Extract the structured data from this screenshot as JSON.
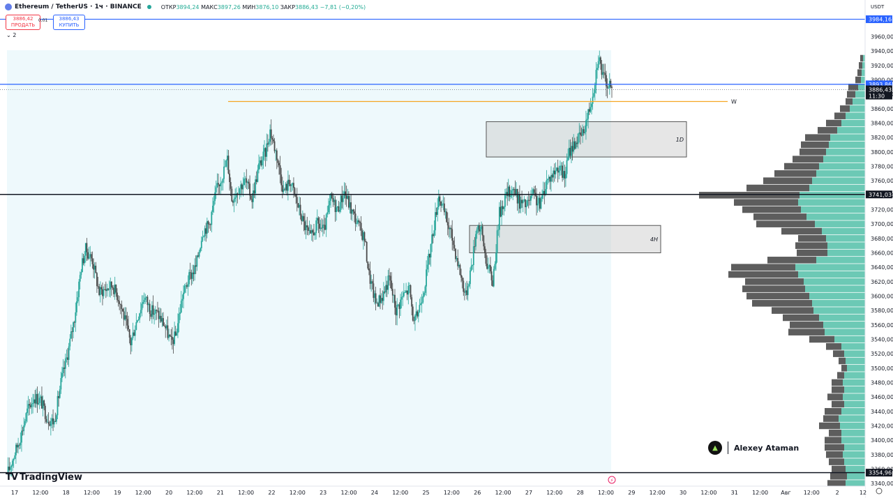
{
  "header": {
    "symbol": "Ethereum / TetherUS · 1ч · BINANCE",
    "ohlc_label_o": "ОТКР",
    "open": "3894,24",
    "ohlc_label_h": "МАКС",
    "high": "3897,26",
    "ohlc_label_l": "МИН",
    "low": "3876,10",
    "ohlc_label_c": "ЗАКР",
    "close": "3886,43",
    "change": "−7,81 (−0,20%)"
  },
  "trade": {
    "sell_price": "3886,42",
    "sell_label": "ПРОДАТЬ",
    "spread": "0,01",
    "buy_price": "3886,43",
    "buy_label": "КУПИТЬ"
  },
  "indicators_count": "2",
  "currency": "USDT",
  "branding": {
    "tradingview": "TradingView",
    "author": "Alexey Ataman"
  },
  "colors": {
    "up": "#26a69a",
    "down": "#4a4a4a",
    "blue_line": "#2962ff",
    "orange_line": "#f5a623",
    "profile_up": "#6cc9b5",
    "profile_down": "#5d5d5d",
    "bg_highlight": "#e8f6fb"
  },
  "chart_data": {
    "type": "candlestick",
    "symbol": "Ethereum / TetherUS",
    "timeframe": "1ч",
    "exchange": "BINANCE",
    "y_axis": {
      "range": [
        3335,
        3970
      ],
      "tick_labels": [
        "3960,00",
        "3940,00",
        "3920,00",
        "3900,00",
        "3880,00",
        "3860,00",
        "3840,00",
        "3820,00",
        "3800,00",
        "3780,00",
        "3760,00",
        "3740,00",
        "3720,00",
        "3700,00",
        "3680,00",
        "3660,00",
        "3640,00",
        "3620,00",
        "3600,00",
        "3580,00",
        "3560,00",
        "3540,00",
        "3520,00",
        "3500,00",
        "3480,00",
        "3460,00",
        "3440,00",
        "3420,00",
        "3400,00",
        "3380,00",
        "3360,00",
        "3340,00"
      ]
    },
    "x_axis": {
      "tick_labels": [
        "17",
        "12:00",
        "18",
        "12:00",
        "19",
        "12:00",
        "20",
        "12:00",
        "21",
        "12:00",
        "22",
        "12:00",
        "23",
        "12:00",
        "24",
        "12:00",
        "25",
        "12:00",
        "26",
        "12:00",
        "27",
        "12:00",
        "28",
        "12:00",
        "29",
        "12:00",
        "30",
        "12:00",
        "31",
        "12:00",
        "Авг",
        "12:00",
        "2",
        "12"
      ]
    },
    "close_path": [
      [
        0,
        3352
      ],
      [
        6,
        3378
      ],
      [
        12,
        3405
      ],
      [
        18,
        3440
      ],
      [
        24,
        3460
      ],
      [
        30,
        3455
      ],
      [
        36,
        3430
      ],
      [
        42,
        3425
      ],
      [
        48,
        3480
      ],
      [
        54,
        3520
      ],
      [
        60,
        3570
      ],
      [
        66,
        3640
      ],
      [
        70,
        3665
      ],
      [
        76,
        3650
      ],
      [
        82,
        3605
      ],
      [
        88,
        3610
      ],
      [
        94,
        3615
      ],
      [
        100,
        3595
      ],
      [
        106,
        3560
      ],
      [
        110,
        3535
      ],
      [
        116,
        3570
      ],
      [
        122,
        3600
      ],
      [
        128,
        3580
      ],
      [
        134,
        3575
      ],
      [
        140,
        3560
      ],
      [
        146,
        3535
      ],
      [
        150,
        3545
      ],
      [
        156,
        3600
      ],
      [
        162,
        3625
      ],
      [
        168,
        3640
      ],
      [
        174,
        3690
      ],
      [
        180,
        3700
      ],
      [
        186,
        3745
      ],
      [
        192,
        3770
      ],
      [
        196,
        3790
      ],
      [
        200,
        3735
      ],
      [
        206,
        3750
      ],
      [
        212,
        3760
      ],
      [
        218,
        3735
      ],
      [
        224,
        3780
      ],
      [
        230,
        3800
      ],
      [
        234,
        3830
      ],
      [
        240,
        3795
      ],
      [
        246,
        3745
      ],
      [
        252,
        3760
      ],
      [
        258,
        3730
      ],
      [
        264,
        3700
      ],
      [
        270,
        3680
      ],
      [
        276,
        3700
      ],
      [
        282,
        3690
      ],
      [
        288,
        3735
      ],
      [
        294,
        3720
      ],
      [
        300,
        3745
      ],
      [
        306,
        3720
      ],
      [
        312,
        3700
      ],
      [
        318,
        3680
      ],
      [
        322,
        3630
      ],
      [
        328,
        3590
      ],
      [
        334,
        3600
      ],
      [
        340,
        3625
      ],
      [
        346,
        3580
      ],
      [
        352,
        3600
      ],
      [
        358,
        3610
      ],
      [
        362,
        3560
      ],
      [
        366,
        3580
      ],
      [
        372,
        3620
      ],
      [
        378,
        3680
      ],
      [
        384,
        3740
      ],
      [
        390,
        3710
      ],
      [
        396,
        3680
      ],
      [
        402,
        3640
      ],
      [
        408,
        3600
      ],
      [
        414,
        3650
      ],
      [
        418,
        3700
      ],
      [
        422,
        3690
      ],
      [
        426,
        3650
      ],
      [
        432,
        3620
      ],
      [
        438,
        3715
      ],
      [
        444,
        3740
      ],
      [
        450,
        3750
      ],
      [
        456,
        3730
      ],
      [
        462,
        3725
      ],
      [
        468,
        3740
      ],
      [
        474,
        3725
      ],
      [
        480,
        3760
      ],
      [
        486,
        3770
      ],
      [
        490,
        3780
      ],
      [
        496,
        3765
      ],
      [
        500,
        3800
      ],
      [
        506,
        3815
      ],
      [
        512,
        3825
      ],
      [
        518,
        3860
      ],
      [
        522,
        3890
      ],
      [
        526,
        3935
      ],
      [
        530,
        3905
      ],
      [
        534,
        3895
      ],
      [
        538,
        3886
      ]
    ],
    "price_lines": [
      {
        "price": 3984.16,
        "style": "blue"
      },
      {
        "price": 3893.86,
        "style": "blue"
      },
      {
        "price": 3886.43,
        "style": "current"
      },
      {
        "price": 3741.03,
        "style": "black"
      },
      {
        "price": 3354.96,
        "style": "black"
      },
      {
        "price": 3870,
        "style": "orange",
        "label": "W"
      }
    ],
    "price_labels": [
      "3984,16",
      "3893,86",
      "3886,43",
      "11:30",
      "3741,03",
      "3354,96"
    ],
    "zones": [
      {
        "label": "1D",
        "price_top": 3842,
        "price_bottom": 3793
      },
      {
        "label": "4H",
        "price_top": 3698,
        "price_bottom": 3660
      }
    ],
    "volume_profile": {
      "step": 10,
      "levels": [
        {
          "price": 3930,
          "up": 3,
          "down": 4
        },
        {
          "price": 3920,
          "up": 4,
          "down": 5
        },
        {
          "price": 3910,
          "up": 5,
          "down": 6
        },
        {
          "price": 3900,
          "up": 6,
          "down": 8
        },
        {
          "price": 3890,
          "up": 10,
          "down": 14
        },
        {
          "price": 3880,
          "up": 14,
          "down": 12
        },
        {
          "price": 3870,
          "up": 18,
          "down": 10
        },
        {
          "price": 3860,
          "up": 22,
          "down": 14
        },
        {
          "price": 3850,
          "up": 28,
          "down": 16
        },
        {
          "price": 3840,
          "up": 34,
          "down": 22
        },
        {
          "price": 3830,
          "up": 40,
          "down": 28
        },
        {
          "price": 3820,
          "up": 50,
          "down": 36
        },
        {
          "price": 3810,
          "up": 52,
          "down": 40
        },
        {
          "price": 3800,
          "up": 56,
          "down": 38
        },
        {
          "price": 3790,
          "up": 60,
          "down": 44
        },
        {
          "price": 3780,
          "up": 66,
          "down": 50
        },
        {
          "price": 3770,
          "up": 70,
          "down": 60
        },
        {
          "price": 3760,
          "up": 76,
          "down": 70
        },
        {
          "price": 3750,
          "up": 80,
          "down": 90
        },
        {
          "price": 3740,
          "up": 94,
          "down": 144
        },
        {
          "price": 3730,
          "up": 96,
          "down": 92
        },
        {
          "price": 3720,
          "up": 92,
          "down": 84
        },
        {
          "price": 3710,
          "up": 84,
          "down": 76
        },
        {
          "price": 3700,
          "up": 72,
          "down": 84
        },
        {
          "price": 3690,
          "up": 62,
          "down": 58
        },
        {
          "price": 3680,
          "up": 56,
          "down": 40
        },
        {
          "price": 3670,
          "up": 54,
          "down": 46
        },
        {
          "price": 3660,
          "up": 54,
          "down": 44
        },
        {
          "price": 3650,
          "up": 70,
          "down": 70
        },
        {
          "price": 3640,
          "up": 100,
          "down": 92
        },
        {
          "price": 3630,
          "up": 96,
          "down": 100
        },
        {
          "price": 3620,
          "up": 88,
          "down": 84
        },
        {
          "price": 3610,
          "up": 86,
          "down": 90
        },
        {
          "price": 3600,
          "up": 80,
          "down": 90
        },
        {
          "price": 3590,
          "up": 76,
          "down": 86
        },
        {
          "price": 3580,
          "up": 74,
          "down": 60
        },
        {
          "price": 3570,
          "up": 66,
          "down": 52
        },
        {
          "price": 3560,
          "up": 60,
          "down": 48
        },
        {
          "price": 3550,
          "up": 58,
          "down": 52
        },
        {
          "price": 3540,
          "up": 44,
          "down": 36
        },
        {
          "price": 3530,
          "up": 34,
          "down": 22
        },
        {
          "price": 3520,
          "up": 30,
          "down": 16
        },
        {
          "price": 3510,
          "up": 28,
          "down": 10
        },
        {
          "price": 3500,
          "up": 26,
          "down": 8
        },
        {
          "price": 3490,
          "up": 30,
          "down": 10
        },
        {
          "price": 3480,
          "up": 32,
          "down": 16
        },
        {
          "price": 3470,
          "up": 30,
          "down": 18
        },
        {
          "price": 3460,
          "up": 32,
          "down": 22
        },
        {
          "price": 3450,
          "up": 30,
          "down": 18
        },
        {
          "price": 3440,
          "up": 34,
          "down": 24
        },
        {
          "price": 3430,
          "up": 38,
          "down": 22
        },
        {
          "price": 3420,
          "up": 36,
          "down": 30
        },
        {
          "price": 3410,
          "up": 34,
          "down": 18
        },
        {
          "price": 3400,
          "up": 34,
          "down": 24
        },
        {
          "price": 3390,
          "up": 30,
          "down": 28
        },
        {
          "price": 3380,
          "up": 32,
          "down": 24
        },
        {
          "price": 3370,
          "up": 30,
          "down": 22
        },
        {
          "price": 3360,
          "up": 28,
          "down": 20
        },
        {
          "price": 3350,
          "up": 26,
          "down": 24
        },
        {
          "price": 3340,
          "up": 28,
          "down": 26
        }
      ]
    }
  }
}
